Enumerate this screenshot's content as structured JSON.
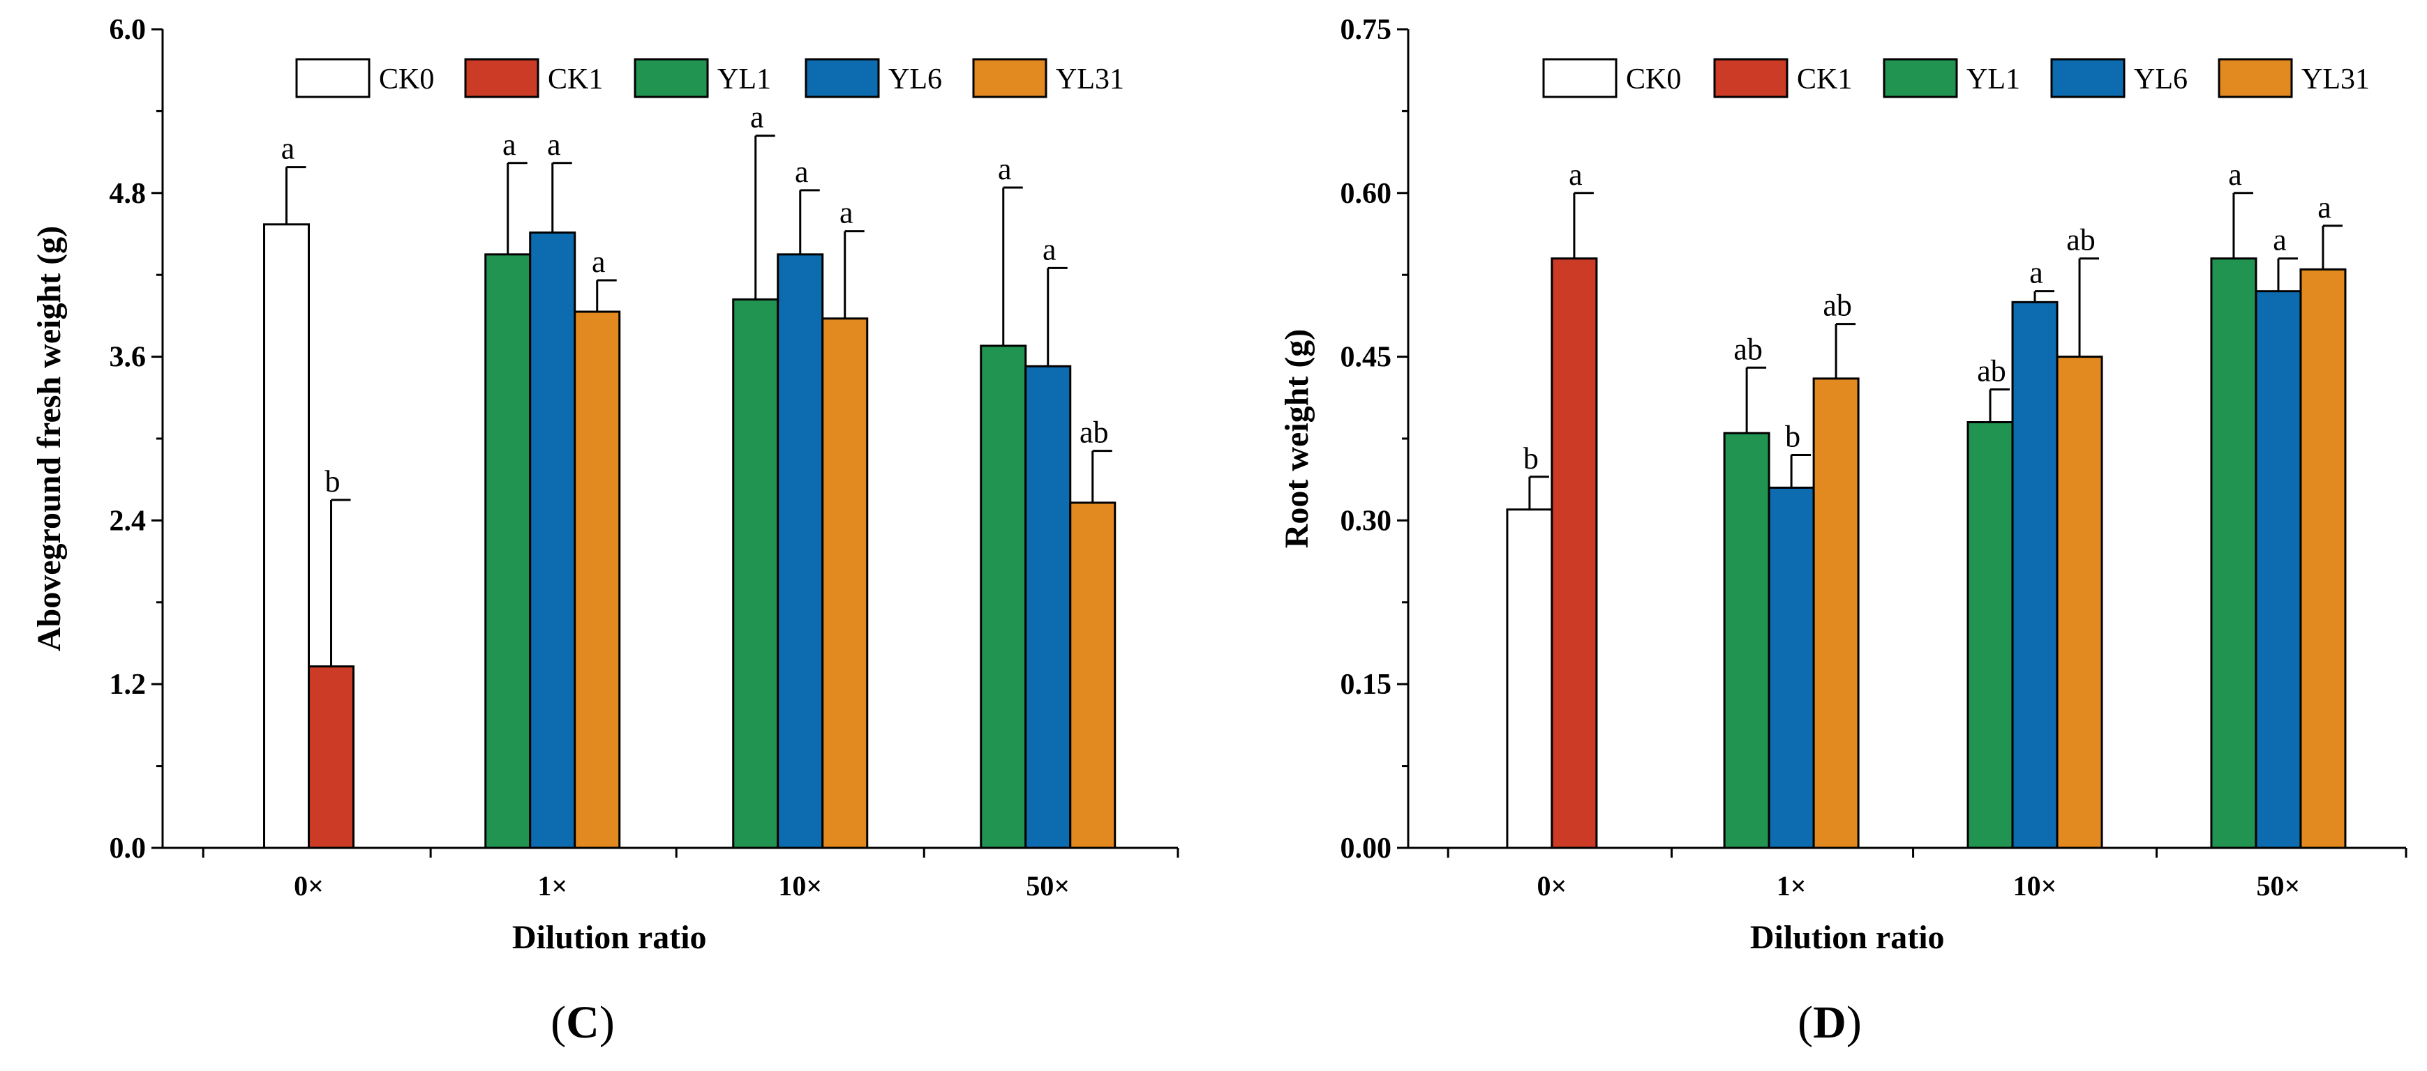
{
  "chart_data": [
    {
      "type": "bar",
      "panel_label": "C",
      "xlabel": "Dilution ratio",
      "ylabel": "Aboveground fresh weight (g)",
      "ylim": [
        0,
        6.0
      ],
      "yticks": [
        "0.0",
        "1.2",
        "2.4",
        "3.6",
        "4.8",
        "6.0"
      ],
      "grid": false,
      "legend_position": "top",
      "categories": [
        "0×",
        "1×",
        "10×",
        "50×"
      ],
      "series": [
        {
          "name": "CK0",
          "color": "#ffffff",
          "values": [
            4.57,
            null,
            null,
            null
          ],
          "errors": [
            0.42,
            null,
            null,
            null
          ],
          "letters": [
            "a",
            null,
            null,
            null
          ]
        },
        {
          "name": "CK1",
          "color": "#cc3b25",
          "values": [
            1.33,
            null,
            null,
            null
          ],
          "errors": [
            1.22,
            null,
            null,
            null
          ],
          "letters": [
            "b",
            null,
            null,
            null
          ]
        },
        {
          "name": "YL1",
          "color": "#219451",
          "values": [
            null,
            4.35,
            4.02,
            3.68
          ],
          "errors": [
            null,
            0.67,
            1.2,
            1.16
          ],
          "letters": [
            null,
            "a",
            "a",
            "a"
          ]
        },
        {
          "name": "YL6",
          "color": "#0d6cb0",
          "values": [
            null,
            4.51,
            4.35,
            3.53
          ],
          "errors": [
            null,
            0.51,
            0.47,
            0.72
          ],
          "letters": [
            null,
            "a",
            "a",
            "a"
          ]
        },
        {
          "name": "YL31",
          "color": "#e2891f",
          "values": [
            null,
            3.93,
            3.88,
            2.53
          ],
          "errors": [
            null,
            0.23,
            0.64,
            0.38
          ],
          "letters": [
            null,
            "a",
            "a",
            "ab"
          ]
        }
      ]
    },
    {
      "type": "bar",
      "panel_label": "D",
      "xlabel": "Dilution ratio",
      "ylabel": "Root weight (g)",
      "ylim": [
        0,
        0.75
      ],
      "yticks": [
        "0.00",
        "0.15",
        "0.30",
        "0.45",
        "0.60",
        "0.75"
      ],
      "grid": false,
      "legend_position": "top",
      "categories": [
        "0×",
        "1×",
        "10×",
        "50×"
      ],
      "series": [
        {
          "name": "CK0",
          "color": "#ffffff",
          "values": [
            0.31,
            null,
            null,
            null
          ],
          "errors": [
            0.03,
            null,
            null,
            null
          ],
          "letters": [
            "b",
            null,
            null,
            null
          ]
        },
        {
          "name": "CK1",
          "color": "#cc3b25",
          "values": [
            0.54,
            null,
            null,
            null
          ],
          "errors": [
            0.06,
            null,
            null,
            null
          ],
          "letters": [
            "a",
            null,
            null,
            null
          ]
        },
        {
          "name": "YL1",
          "color": "#219451",
          "values": [
            null,
            0.38,
            0.39,
            0.54
          ],
          "errors": [
            null,
            0.06,
            0.03,
            0.06
          ],
          "letters": [
            null,
            "ab",
            "ab",
            "a"
          ]
        },
        {
          "name": "YL6",
          "color": "#0d6cb0",
          "values": [
            null,
            0.33,
            0.5,
            0.51
          ],
          "errors": [
            null,
            0.03,
            0.01,
            0.03
          ],
          "letters": [
            null,
            "b",
            "a",
            "a"
          ]
        },
        {
          "name": "YL31",
          "color": "#e2891f",
          "values": [
            null,
            0.43,
            0.45,
            0.53
          ],
          "errors": [
            null,
            0.05,
            0.09,
            0.04
          ],
          "letters": [
            null,
            "ab",
            "ab",
            "a"
          ]
        }
      ]
    }
  ]
}
